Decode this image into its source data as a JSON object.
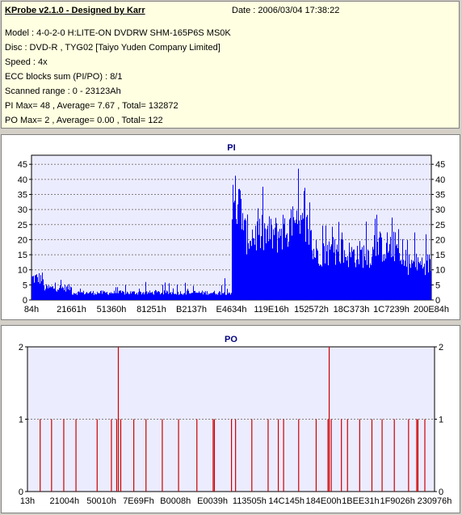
{
  "header": {
    "title": "KProbe v2.1.0 - Designed by Karr",
    "date": "Date : 2006/03/04 17:38:22",
    "lines": [
      "Model : 4-0-2-0 H:LITE-ON DVDRW SHM-165P6S MS0K",
      "Disc : DVD-R , TYG02 [Taiyo Yuden Company Limited]",
      "Speed : 4x",
      "ECC blocks sum (PI/PO) : 8/1",
      "Scanned range : 0 - 23123Ah",
      "PI Max= 48 , Average= 7.67 , Total= 132872",
      "PO Max= 2 , Average= 0.00 , Total= 122"
    ]
  },
  "colors": {
    "pi_bar": "#0000ff",
    "po_bar": "#cc0000",
    "plot_bg": "#ececff",
    "title_color": "#000080"
  },
  "chart_data": [
    {
      "type": "bar",
      "title": "PI",
      "ylim": [
        0,
        48
      ],
      "y_ticks": [
        0,
        5,
        10,
        15,
        20,
        25,
        30,
        35,
        40,
        45
      ],
      "x_tick_labels": [
        "84h",
        "21661h",
        "51360h",
        "81251h",
        "B2137h",
        "E4634h",
        "119E16h",
        "152572h",
        "18C373h",
        "1C7239h",
        "200E84h"
      ],
      "segments": [
        {
          "x_from": 0.0,
          "x_to": 0.03,
          "typical": 9,
          "max": 13
        },
        {
          "x_from": 0.03,
          "x_to": 0.1,
          "typical": 5,
          "max": 8
        },
        {
          "x_from": 0.1,
          "x_to": 0.46,
          "typical": 3,
          "max": 6
        },
        {
          "x_from": 0.46,
          "x_to": 0.5,
          "typical": 3,
          "max": 8
        },
        {
          "x_from": 0.5,
          "x_to": 0.53,
          "typical": 38,
          "max": 48
        },
        {
          "x_from": 0.53,
          "x_to": 0.62,
          "typical": 27,
          "max": 38
        },
        {
          "x_from": 0.62,
          "x_to": 0.7,
          "typical": 29,
          "max": 44
        },
        {
          "x_from": 0.7,
          "x_to": 0.78,
          "typical": 20,
          "max": 28
        },
        {
          "x_from": 0.78,
          "x_to": 0.86,
          "typical": 19,
          "max": 28
        },
        {
          "x_from": 0.86,
          "x_to": 0.92,
          "typical": 22,
          "max": 29
        },
        {
          "x_from": 0.92,
          "x_to": 1.0,
          "typical": 15,
          "max": 23
        }
      ]
    },
    {
      "type": "bar",
      "title": "PO",
      "ylim": [
        0,
        2
      ],
      "y_ticks": [
        0,
        1,
        2
      ],
      "x_tick_labels": [
        "13h",
        "21004h",
        "50010h",
        "7E69Fh",
        "B0008h",
        "E0039h",
        "113505h",
        "14C145h",
        "184E00h",
        "1BEE31h",
        "1F9026h",
        "230976h"
      ],
      "x": [
        0.03,
        0.058,
        0.088,
        0.118,
        0.17,
        0.205,
        0.218,
        0.222,
        0.228,
        0.26,
        0.29,
        0.33,
        0.37,
        0.415,
        0.455,
        0.458,
        0.5,
        0.51,
        0.55,
        0.59,
        0.615,
        0.628,
        0.665,
        0.708,
        0.737,
        0.74,
        0.745,
        0.77,
        0.785,
        0.815,
        0.845,
        0.87,
        0.9,
        0.935,
        0.955,
        0.958,
        0.975
      ],
      "values": [
        1,
        1,
        1,
        1,
        1,
        1,
        1,
        2,
        1,
        1,
        1,
        1,
        1,
        1,
        1,
        1,
        1,
        1,
        1,
        1,
        1,
        1,
        1,
        1,
        1,
        2,
        1,
        1,
        1,
        1,
        1,
        1,
        1,
        1,
        1,
        1,
        1
      ]
    }
  ]
}
